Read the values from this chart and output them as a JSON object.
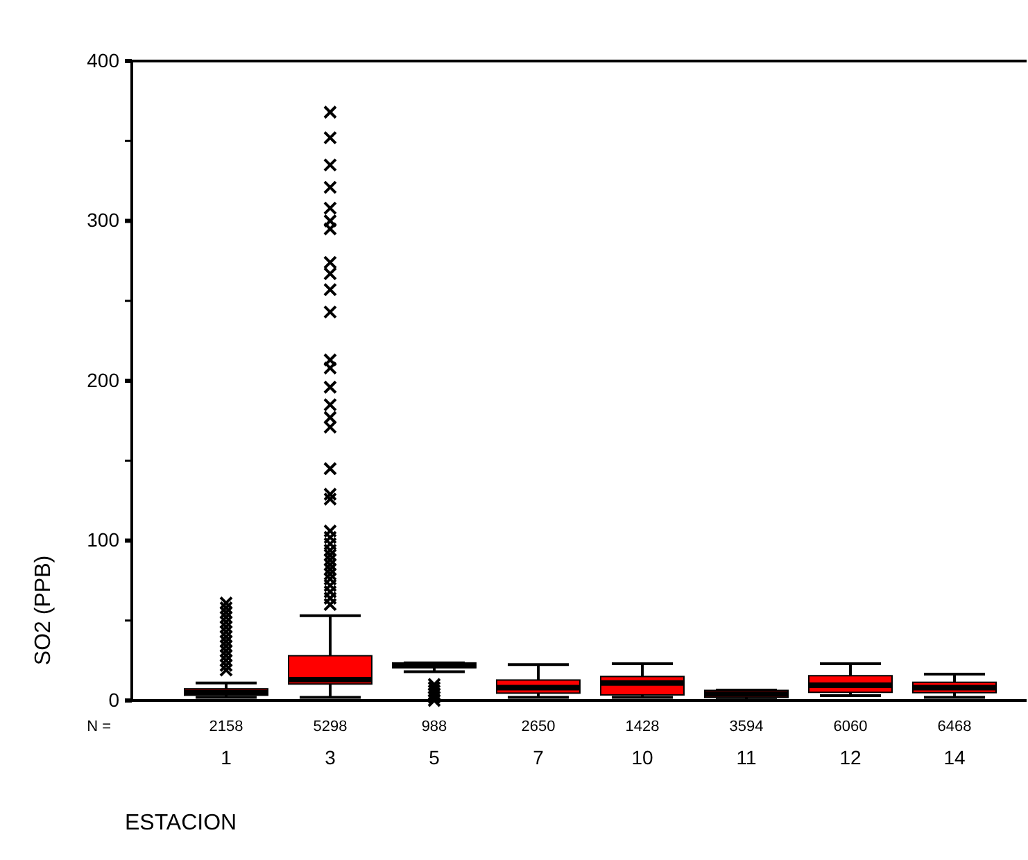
{
  "chart_data": {
    "type": "box",
    "xlabel": "ESTACION",
    "ylabel": "SO2 (PPB)",
    "categories": [
      "1",
      "3",
      "5",
      "7",
      "10",
      "11",
      "12",
      "14"
    ],
    "ylim": [
      0,
      400
    ],
    "yticks": [
      0,
      {
        "value": 50,
        "label": null
      },
      100,
      {
        "value": 150,
        "label": null
      },
      200,
      {
        "value": 250,
        "label": null
      },
      300,
      {
        "value": 350,
        "label": null
      },
      400
    ],
    "grid": false,
    "marker": "cross",
    "series": [
      {
        "color": "#ff0000",
        "boxes": [
          {
            "low": 2,
            "q1": 3.3,
            "median": 5,
            "q3": 7.3,
            "high": 11,
            "outliers": [
              19,
              22,
              25,
              28,
              31,
              34,
              37,
              40,
              43,
              46,
              49,
              52,
              55,
              58,
              61
            ]
          },
          {
            "low": 2,
            "q1": 10.3,
            "median": 13,
            "q3": 28,
            "high": 53,
            "outliers": [
              60,
              64,
              68,
              72,
              76,
              79,
              82,
              85,
              88,
              91,
              94,
              98,
              102,
              106,
              126,
              129,
              145,
              171,
              177,
              185,
              196,
              208,
              213,
              243,
              257,
              267,
              274,
              295,
              300,
              308,
              321,
              335,
              352,
              368
            ]
          },
          {
            "low": 18,
            "q1": 20.5,
            "median": 22,
            "q3": 23.5,
            "high": 23.5,
            "outliers": [
              0,
              2,
              4,
              6,
              8,
              10
            ]
          },
          {
            "low": 2,
            "q1": 4.6,
            "median": 8,
            "q3": 12.8,
            "high": 22.5
          },
          {
            "low": 2,
            "q1": 3.5,
            "median": 11,
            "q3": 15,
            "high": 23
          },
          {
            "low": 0.5,
            "q1": 1.9,
            "median": 4,
            "q3": 6.3,
            "high": 6.5
          },
          {
            "low": 3,
            "q1": 5.1,
            "median": 9.5,
            "q3": 15.5,
            "high": 23
          },
          {
            "low": 2,
            "q1": 4.9,
            "median": 8,
            "q3": 11.4,
            "high": 16.5
          }
        ]
      }
    ],
    "annotations": [
      "N =",
      "2158",
      "5298",
      "988",
      "2650",
      "1428",
      "3594",
      "6060",
      "6468"
    ]
  }
}
